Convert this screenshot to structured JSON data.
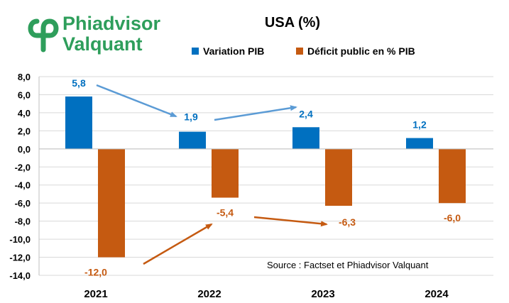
{
  "logo": {
    "line1": "Phiadvisor",
    "line2": "Valquant",
    "color": "#2e9e5b"
  },
  "chart_data": {
    "type": "bar",
    "title": "USA (%)",
    "categories": [
      "2021",
      "2022",
      "2023",
      "2024"
    ],
    "series": [
      {
        "name": "Variation PIB",
        "color": "#0070c0",
        "values": [
          5.8,
          1.9,
          2.4,
          1.2
        ],
        "labels": [
          "5,8",
          "1,9",
          "2,4",
          "1,2"
        ]
      },
      {
        "name": "Déficit public en % PIB",
        "color": "#c55a11",
        "values": [
          -12.0,
          -5.4,
          -6.3,
          -6.0
        ],
        "labels": [
          "-12,0",
          "-5,4",
          "-6,3",
          "-6,0"
        ]
      }
    ],
    "ylim": [
      -14,
      8
    ],
    "yticks": [
      8,
      6,
      4,
      2,
      0,
      -2,
      -4,
      -6,
      -8,
      -10,
      -12,
      -14
    ],
    "ytick_labels": [
      "8,0",
      "6,0",
      "4,0",
      "2,0",
      "0,0",
      "-2,0",
      "-4,0",
      "-6,0",
      "-8,0",
      "-10,0",
      "-12,0",
      "-14,0"
    ],
    "legend_position": "top",
    "grid": true,
    "annotations": {
      "source": "Source : Factset et Phiadvisor Valquant"
    }
  }
}
